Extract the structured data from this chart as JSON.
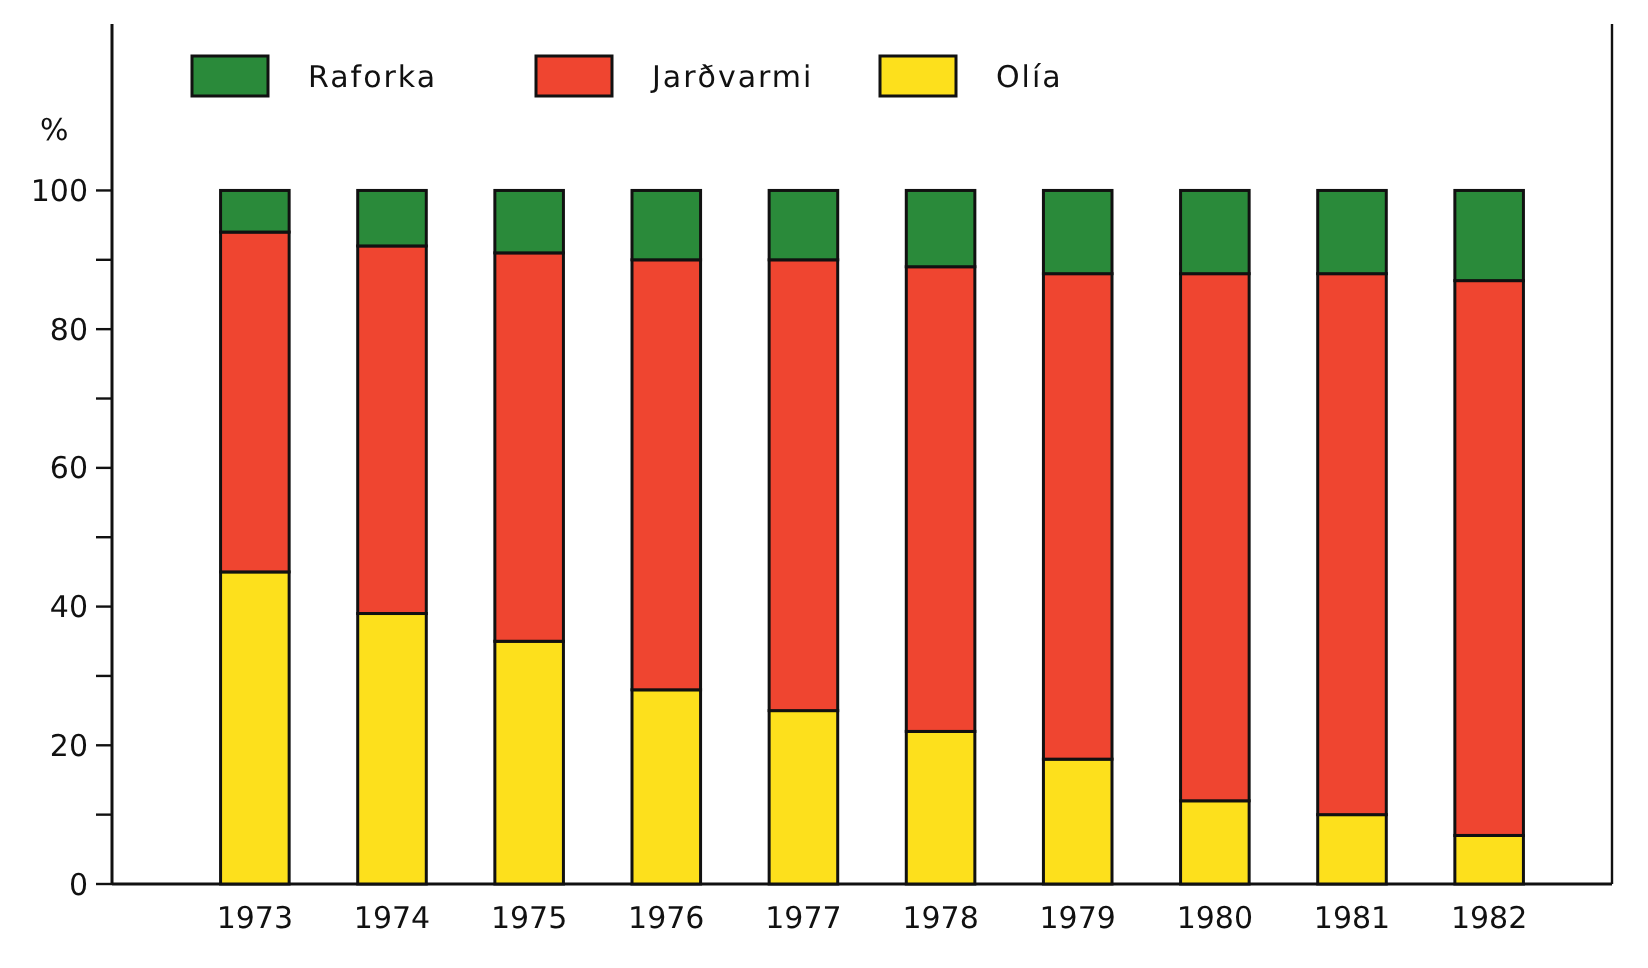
{
  "chart_data": {
    "type": "bar",
    "stacked": true,
    "ylabel": "%",
    "categories": [
      "1973",
      "1974",
      "1975",
      "1976",
      "1977",
      "1978",
      "1979",
      "1980",
      "1981",
      "1982"
    ],
    "series": [
      {
        "name": "Olía",
        "color": "#fde01c",
        "values": [
          45,
          39,
          35,
          28,
          25,
          22,
          18,
          12,
          10,
          7
        ]
      },
      {
        "name": "Jarðvarmi",
        "color": "#ef4530",
        "values": [
          49,
          53,
          56,
          62,
          65,
          67,
          70,
          76,
          78,
          80
        ]
      },
      {
        "name": "Raforka",
        "color": "#2a8a3a",
        "values": [
          6,
          8,
          9,
          10,
          10,
          11,
          12,
          12,
          12,
          13
        ]
      }
    ],
    "ylim": [
      0,
      124
    ],
    "yticks": [
      0,
      {
        "value": 10,
        "label": null
      },
      20,
      {
        "value": 30,
        "label": null
      },
      40,
      {
        "value": 50,
        "label": null
      },
      60,
      {
        "value": 70,
        "label": null
      },
      80,
      {
        "value": 90,
        "label": null
      },
      100
    ],
    "legend": "top left"
  }
}
